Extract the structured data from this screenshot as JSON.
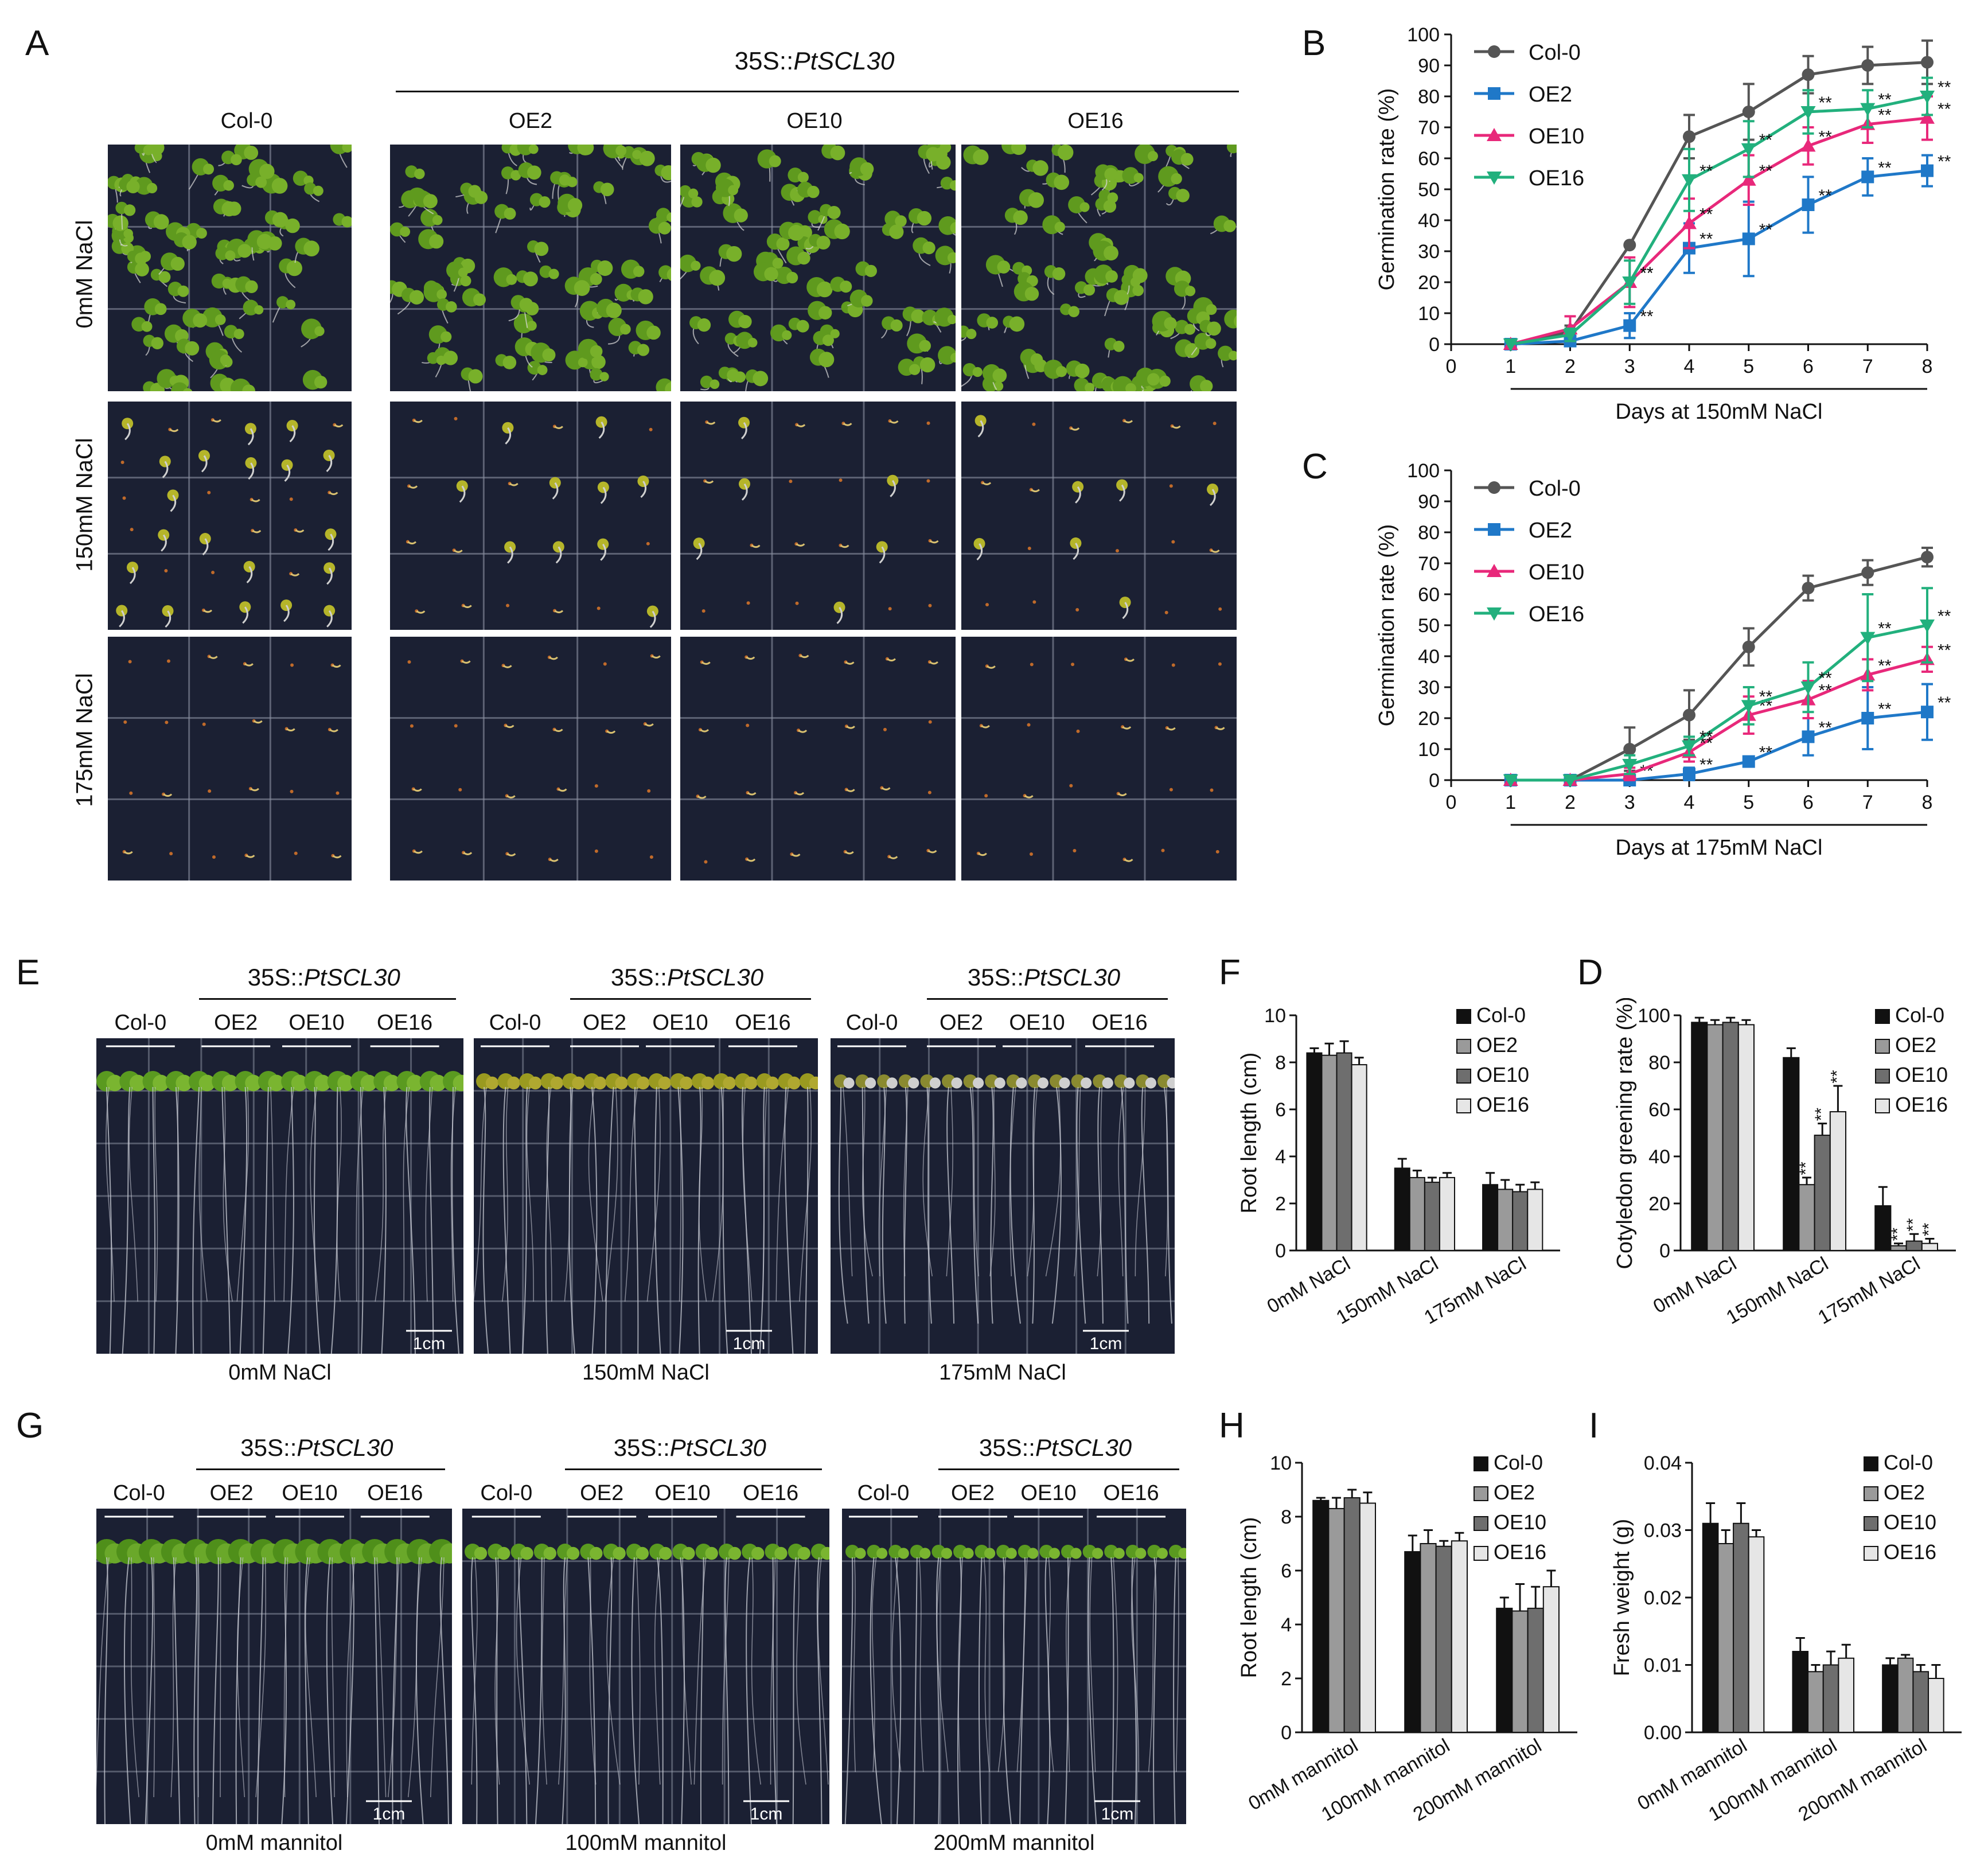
{
  "panel_letters": {
    "A": "A",
    "B": "B",
    "C": "C",
    "D": "D",
    "E": "E",
    "F": "F",
    "G": "G",
    "H": "H",
    "I": "I"
  },
  "construct_label": "35S::PtSCL30",
  "construct_prefix": "35S::",
  "construct_gene": "PtSCL30",
  "panelA": {
    "columns": [
      "Col-0",
      "OE2",
      "OE10",
      "OE16"
    ],
    "rows": [
      "0mM NaCl",
      "150mM  NaCl",
      "175mM NaCl"
    ]
  },
  "panelE": {
    "groups": [
      {
        "labels": [
          "Col-0",
          "OE2",
          "OE10",
          "OE16"
        ],
        "caption": "0mM NaCl",
        "scale": "1cm"
      },
      {
        "labels": [
          "Col-0",
          "OE2",
          "OE10",
          "OE16"
        ],
        "caption": "150mM  NaCl",
        "scale": "1cm"
      },
      {
        "labels": [
          "Col-0",
          "OE2",
          "OE10",
          "OE16"
        ],
        "caption": "175mM NaCl",
        "scale": "1cm"
      }
    ]
  },
  "panelG": {
    "groups": [
      {
        "labels": [
          "Col-0",
          "OE2",
          "OE10",
          "OE16"
        ],
        "caption": "0mM mannitol",
        "scale": "1cm"
      },
      {
        "labels": [
          "Col-0",
          "OE2",
          "OE10",
          "OE16"
        ],
        "caption": "100mM mannitol",
        "scale": "1cm"
      },
      {
        "labels": [
          "Col-0",
          "OE2",
          "OE10",
          "OE16"
        ],
        "caption": "200mM mannitol",
        "scale": "1cm"
      }
    ]
  },
  "colors": {
    "col0": "#555555",
    "oe2": "#1f78c8",
    "oe10": "#e8287a",
    "oe16": "#22b07d",
    "photo_bg": "#1b2033"
  },
  "chart_data": [
    {
      "id": "B",
      "type": "line",
      "xlabel": "Days at 150mM NaCl",
      "ylabel": "Germination rate (%)",
      "xlim": [
        0,
        8
      ],
      "ylim": [
        0,
        100
      ],
      "x": [
        1,
        2,
        3,
        4,
        5,
        6,
        7,
        8
      ],
      "xticks": [
        "0",
        "1",
        "2",
        "3",
        "4",
        "5",
        "6",
        "7",
        "8"
      ],
      "yticks": [
        "0",
        "10",
        "20",
        "30",
        "40",
        "50",
        "60",
        "70",
        "80",
        "90",
        "100"
      ],
      "legend_position": "top-left",
      "series": [
        {
          "name": "Col-0",
          "values": [
            0,
            4,
            32,
            67,
            75,
            87,
            90,
            91
          ],
          "err": [
            0,
            2,
            0,
            7,
            9,
            6,
            6,
            7
          ]
        },
        {
          "name": "OE2",
          "values": [
            0,
            1,
            6,
            31,
            34,
            45,
            54,
            56
          ],
          "err": [
            0,
            1,
            4,
            8,
            12,
            9,
            6,
            5
          ]
        },
        {
          "name": "OE10",
          "values": [
            0,
            5,
            20,
            39,
            53,
            64,
            71,
            73
          ],
          "err": [
            0,
            4,
            8,
            8,
            8,
            6,
            6,
            7
          ]
        },
        {
          "name": "OE16",
          "values": [
            0,
            3,
            20,
            53,
            63,
            75,
            76,
            80
          ],
          "err": [
            0,
            2,
            7,
            10,
            9,
            7,
            6,
            6
          ]
        }
      ],
      "annotations": [
        "**",
        "**",
        "**",
        "**",
        "**",
        "**",
        "**",
        "**"
      ]
    },
    {
      "id": "C",
      "type": "line",
      "xlabel": "Days at 175mM NaCl",
      "ylabel": "Germination rate (%)",
      "xlim": [
        0,
        8
      ],
      "ylim": [
        0,
        100
      ],
      "x": [
        1,
        2,
        3,
        4,
        5,
        6,
        7,
        8
      ],
      "xticks": [
        "0",
        "1",
        "2",
        "3",
        "4",
        "5",
        "6",
        "7",
        "8"
      ],
      "yticks": [
        "0",
        "10",
        "20",
        "30",
        "40",
        "50",
        "60",
        "70",
        "80",
        "90",
        "100"
      ],
      "legend_position": "top-left",
      "series": [
        {
          "name": "Col-0",
          "values": [
            0,
            0,
            10,
            21,
            43,
            62,
            67,
            72
          ],
          "err": [
            0,
            0,
            7,
            8,
            6,
            4,
            4,
            3
          ]
        },
        {
          "name": "OE2",
          "values": [
            0,
            0,
            0,
            2,
            6,
            14,
            20,
            22
          ],
          "err": [
            0,
            0,
            0,
            2,
            1,
            6,
            10,
            9
          ]
        },
        {
          "name": "OE10",
          "values": [
            0,
            0,
            2,
            9,
            21,
            26,
            34,
            39
          ],
          "err": [
            0,
            0,
            2,
            3,
            6,
            6,
            5,
            4
          ]
        },
        {
          "name": "OE16",
          "values": [
            0,
            0,
            5,
            11,
            24,
            30,
            46,
            50
          ],
          "err": [
            0,
            0,
            3,
            3,
            6,
            8,
            14,
            12
          ]
        }
      ],
      "annotations": [
        "**",
        "**"
      ]
    },
    {
      "id": "F",
      "type": "bar",
      "ylabel": "Root  length (cm)",
      "ylim": [
        0,
        10
      ],
      "yticks": [
        "0",
        "2",
        "4",
        "6",
        "8",
        "10"
      ],
      "categories": [
        "0mM NaCl",
        "150mM NaCl",
        "175mM NaCl"
      ],
      "legend_position": "top-right",
      "series": [
        {
          "name": "Col-0",
          "values": [
            8.4,
            3.5,
            2.8
          ],
          "err": [
            0.2,
            0.4,
            0.5
          ]
        },
        {
          "name": "OE2",
          "values": [
            8.3,
            3.1,
            2.6
          ],
          "err": [
            0.5,
            0.3,
            0.4
          ]
        },
        {
          "name": "OE10",
          "values": [
            8.4,
            2.9,
            2.5
          ],
          "err": [
            0.5,
            0.2,
            0.3
          ]
        },
        {
          "name": "OE16",
          "values": [
            7.9,
            3.1,
            2.6
          ],
          "err": [
            0.3,
            0.2,
            0.3
          ]
        }
      ]
    },
    {
      "id": "D",
      "type": "bar",
      "ylabel": "Cotyledon greening rate  (%)",
      "ylim": [
        0,
        100
      ],
      "yticks": [
        "0",
        "20",
        "40",
        "60",
        "80",
        "100"
      ],
      "categories": [
        "0mM NaCl",
        "150mM NaCl",
        "175mM NaCl"
      ],
      "legend_position": "top-right",
      "series": [
        {
          "name": "Col-0",
          "values": [
            97,
            82,
            19
          ],
          "err": [
            2,
            4,
            8
          ]
        },
        {
          "name": "OE2",
          "values": [
            96,
            28,
            2
          ],
          "err": [
            2,
            3,
            1
          ]
        },
        {
          "name": "OE10",
          "values": [
            97,
            49,
            4
          ],
          "err": [
            2,
            5,
            3
          ]
        },
        {
          "name": "OE16",
          "values": [
            96,
            59,
            3
          ],
          "err": [
            2,
            11,
            2
          ]
        }
      ],
      "annotations": [
        "**",
        "**",
        "*",
        "**",
        "**",
        "**"
      ]
    },
    {
      "id": "H",
      "type": "bar",
      "ylabel": "Root  length (cm)",
      "ylim": [
        0,
        10
      ],
      "yticks": [
        "0",
        "2",
        "4",
        "6",
        "8",
        "10"
      ],
      "categories": [
        "0mM mannitol",
        "100mM mannitol",
        "200mM mannitol"
      ],
      "legend_position": "top-right",
      "series": [
        {
          "name": "Col-0",
          "values": [
            8.6,
            6.7,
            4.6
          ],
          "err": [
            0.1,
            0.6,
            0.4
          ]
        },
        {
          "name": "OE2",
          "values": [
            8.3,
            7.0,
            4.5
          ],
          "err": [
            0.4,
            0.5,
            1.0
          ]
        },
        {
          "name": "OE10",
          "values": [
            8.7,
            6.9,
            4.6
          ],
          "err": [
            0.3,
            0.2,
            0.8
          ]
        },
        {
          "name": "OE16",
          "values": [
            8.5,
            7.1,
            5.4
          ],
          "err": [
            0.4,
            0.3,
            0.6
          ]
        }
      ]
    },
    {
      "id": "I",
      "type": "bar",
      "ylabel": "Fresh weight  (g)",
      "ylim": [
        0,
        0.04
      ],
      "yticks": [
        "0.00",
        "0.01",
        "0.02",
        "0.03",
        "0.04"
      ],
      "categories": [
        "0mM mannitol",
        "100mM mannitol",
        "200mM mannitol"
      ],
      "legend_position": "top-right",
      "series": [
        {
          "name": "Col-0",
          "values": [
            0.031,
            0.012,
            0.01
          ],
          "err": [
            0.003,
            0.002,
            0.001
          ]
        },
        {
          "name": "OE2",
          "values": [
            0.028,
            0.009,
            0.011
          ],
          "err": [
            0.002,
            0.001,
            0.0005
          ]
        },
        {
          "name": "OE10",
          "values": [
            0.031,
            0.01,
            0.009
          ],
          "err": [
            0.003,
            0.002,
            0.001
          ]
        },
        {
          "name": "OE16",
          "values": [
            0.029,
            0.011,
            0.008
          ],
          "err": [
            0.001,
            0.002,
            0.002
          ]
        }
      ]
    }
  ]
}
